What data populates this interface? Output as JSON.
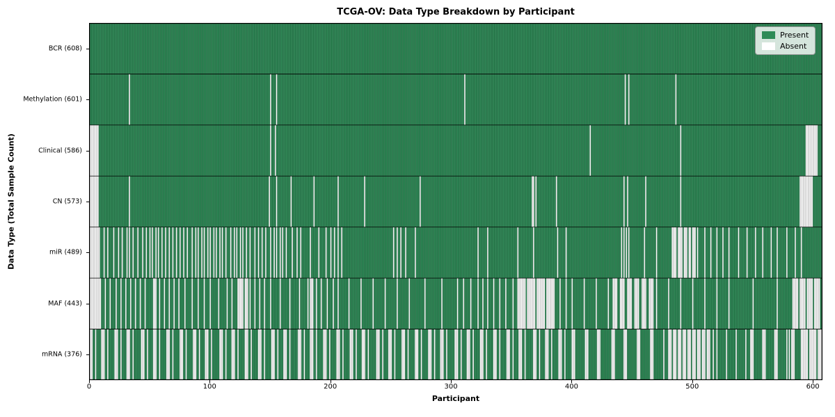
{
  "title": "TCGA-OV: Data Type Breakdown by Participant",
  "axes": {
    "x_label": "Participant",
    "y_label": "Data Type (Total Sample Count)"
  },
  "legend": {
    "items": [
      {
        "label": "Present",
        "color": "#2e8b57"
      },
      {
        "label": "Absent",
        "color": "#ffffff"
      }
    ]
  },
  "chart_data": {
    "type": "heatmap",
    "title": "TCGA-OV: Data Type Breakdown by Participant",
    "xlabel": "Participant",
    "ylabel": "Data Type (Total Sample Count)",
    "n_participants": 608,
    "x_ticks": [
      0,
      100,
      200,
      300,
      400,
      500,
      600
    ],
    "xlim": [
      0,
      608
    ],
    "legend_position": "upper right",
    "colors": {
      "present": "#2e8b57",
      "absent": "#ffffff",
      "cell_edge": "rgba(0,0,0,0.5)",
      "row_separator": "#000000"
    },
    "value_legend": {
      "present": "Present",
      "absent": "Absent"
    },
    "rows": [
      {
        "label": "BCR (608)",
        "data_type": "BCR",
        "present_count": 608,
        "absent": [],
        "absent_ranges": []
      },
      {
        "label": "Methylation (601)",
        "data_type": "Methylation",
        "present_count": 601,
        "absent": [
          33,
          150,
          155,
          311,
          444,
          447,
          486
        ],
        "absent_ranges": []
      },
      {
        "label": "Clinical (586)",
        "data_type": "Clinical",
        "present_count": 586,
        "absent": [
          150,
          154,
          415,
          490
        ],
        "absent_ranges": [
          [
            0,
            7
          ],
          [
            594,
            603
          ]
        ]
      },
      {
        "label": "CN (573)",
        "data_type": "CN",
        "present_count": 573,
        "absent": [
          33,
          149,
          155,
          167,
          186,
          206,
          228,
          274,
          367,
          368,
          370,
          387,
          443,
          446,
          461,
          490
        ],
        "absent_ranges": [
          [
            0,
            7
          ],
          [
            589,
            599
          ]
        ]
      },
      {
        "label": "miR (489)",
        "data_type": "miR",
        "present_count": 489,
        "absent": [
          12,
          15,
          20,
          24,
          27,
          31,
          33,
          36,
          40,
          44,
          47,
          50,
          52,
          55,
          57,
          60,
          63,
          66,
          69,
          72,
          75,
          78,
          81,
          85,
          88,
          90,
          93,
          95,
          98,
          100,
          103,
          105,
          108,
          110,
          113,
          117,
          120,
          122,
          125,
          127,
          130,
          133,
          137,
          140,
          143,
          146,
          150,
          153,
          155,
          158,
          160,
          163,
          168,
          172,
          175,
          183,
          190,
          196,
          200,
          203,
          206,
          209,
          252,
          255,
          258,
          262,
          270,
          322,
          330,
          355,
          368,
          388,
          395,
          441,
          443,
          445,
          447,
          460,
          470,
          504,
          510,
          515,
          520,
          525,
          530,
          538,
          545,
          552,
          558,
          565,
          570,
          578,
          585,
          590
        ],
        "absent_ranges": [
          [
            0,
            8
          ],
          [
            483,
            486
          ],
          [
            488,
            491
          ],
          [
            493,
            495
          ],
          [
            497,
            498
          ],
          [
            500,
            502
          ]
        ]
      },
      {
        "label": "MAF (443)",
        "data_type": "MAF",
        "present_count": 443,
        "absent": [
          13,
          17,
          22,
          26,
          30,
          34,
          38,
          42,
          46,
          58,
          62,
          66,
          70,
          74,
          79,
          85,
          90,
          95,
          100,
          107,
          114,
          118,
          133,
          137,
          141,
          145,
          150,
          158,
          166,
          174,
          181,
          188,
          192,
          197,
          202,
          206,
          215,
          225,
          235,
          245,
          255,
          265,
          278,
          292,
          305,
          310,
          316,
          322,
          326,
          330,
          335,
          340,
          345,
          351,
          390,
          395,
          400,
          410,
          420,
          430,
          470,
          480,
          490,
          500,
          510,
          520,
          530,
          550,
          570
        ],
        "absent_ranges": [
          [
            0,
            9
          ],
          [
            53,
            55
          ],
          [
            123,
            127
          ],
          [
            129,
            131
          ],
          [
            183,
            185
          ],
          [
            355,
            361
          ],
          [
            363,
            369
          ],
          [
            371,
            377
          ],
          [
            379,
            385
          ],
          [
            434,
            437
          ],
          [
            440,
            443
          ],
          [
            446,
            449
          ],
          [
            452,
            455
          ],
          [
            458,
            461
          ],
          [
            464,
            467
          ],
          [
            583,
            587
          ],
          [
            589,
            593
          ],
          [
            595,
            599
          ],
          [
            601,
            605
          ]
        ]
      },
      {
        "label": "mRNA (376)",
        "data_type": "mRNA",
        "present_count": 376,
        "absent": [
          5,
          15,
          26,
          36,
          48,
          58,
          69,
          80,
          91,
          101,
          113,
          123,
          134,
          145,
          156,
          166,
          178,
          188,
          199,
          210,
          221,
          231,
          243,
          253,
          264,
          275,
          286,
          296,
          308,
          318,
          329,
          340,
          351,
          361,
          373,
          383,
          394,
          476,
          517,
          520,
          528,
          536,
          544,
          578,
          580
        ],
        "absent_ranges": [
          [
            0,
            2
          ],
          [
            10,
            12
          ],
          [
            21,
            23
          ],
          [
            31,
            33
          ],
          [
            43,
            45
          ],
          [
            53,
            55
          ],
          [
            64,
            66
          ],
          [
            75,
            77
          ],
          [
            86,
            88
          ],
          [
            96,
            98
          ],
          [
            108,
            110
          ],
          [
            118,
            120
          ],
          [
            129,
            131
          ],
          [
            140,
            142
          ],
          [
            151,
            153
          ],
          [
            161,
            163
          ],
          [
            173,
            175
          ],
          [
            183,
            185
          ],
          [
            194,
            196
          ],
          [
            205,
            207
          ],
          [
            216,
            218
          ],
          [
            226,
            228
          ],
          [
            238,
            240
          ],
          [
            248,
            250
          ],
          [
            259,
            261
          ],
          [
            270,
            272
          ],
          [
            281,
            283
          ],
          [
            291,
            293
          ],
          [
            303,
            305
          ],
          [
            313,
            315
          ],
          [
            324,
            326
          ],
          [
            335,
            337
          ],
          [
            346,
            348
          ],
          [
            356,
            358
          ],
          [
            368,
            370
          ],
          [
            378,
            380
          ],
          [
            389,
            391
          ],
          [
            400,
            402
          ],
          [
            411,
            413
          ],
          [
            421,
            423
          ],
          [
            433,
            435
          ],
          [
            443,
            445
          ],
          [
            454,
            456
          ],
          [
            465,
            467
          ],
          [
            480,
            482
          ],
          [
            484,
            486
          ],
          [
            488,
            490
          ],
          [
            492,
            494
          ],
          [
            496,
            498
          ],
          [
            500,
            502
          ],
          [
            504,
            506
          ],
          [
            508,
            510
          ],
          [
            512,
            514
          ],
          [
            548,
            550
          ],
          [
            558,
            560
          ],
          [
            568,
            570
          ],
          [
            582,
            584
          ],
          [
            590,
            595
          ],
          [
            597,
            602
          ],
          [
            604,
            607
          ]
        ]
      }
    ]
  }
}
